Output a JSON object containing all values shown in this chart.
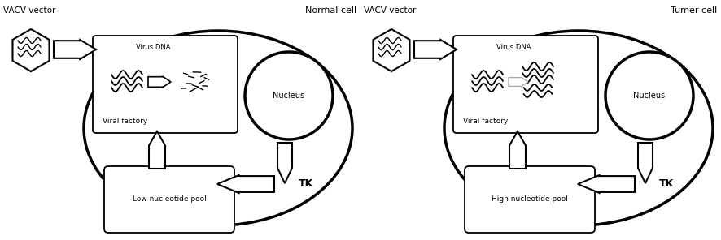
{
  "bg_color": "#ffffff",
  "line_color": "#000000",
  "fig_width": 8.86,
  "fig_height": 2.96,
  "left_panel": {
    "label": "VACV vector",
    "cell_label": "Normal cell",
    "pool_label": "Low nucleotide pool",
    "tk_label": "TK",
    "nucleus_label": "Nucleus",
    "factory_label": "Viral factory",
    "virus_dna_label": "Virus DNA"
  },
  "right_panel": {
    "label": "VACV vector",
    "cell_label": "Tumer cell",
    "pool_label": "High nucleotide pool",
    "tk_label": "TK",
    "nucleus_label": "Nucleus",
    "factory_label": "Viral factory",
    "virus_dna_label": "Virus DNA"
  }
}
